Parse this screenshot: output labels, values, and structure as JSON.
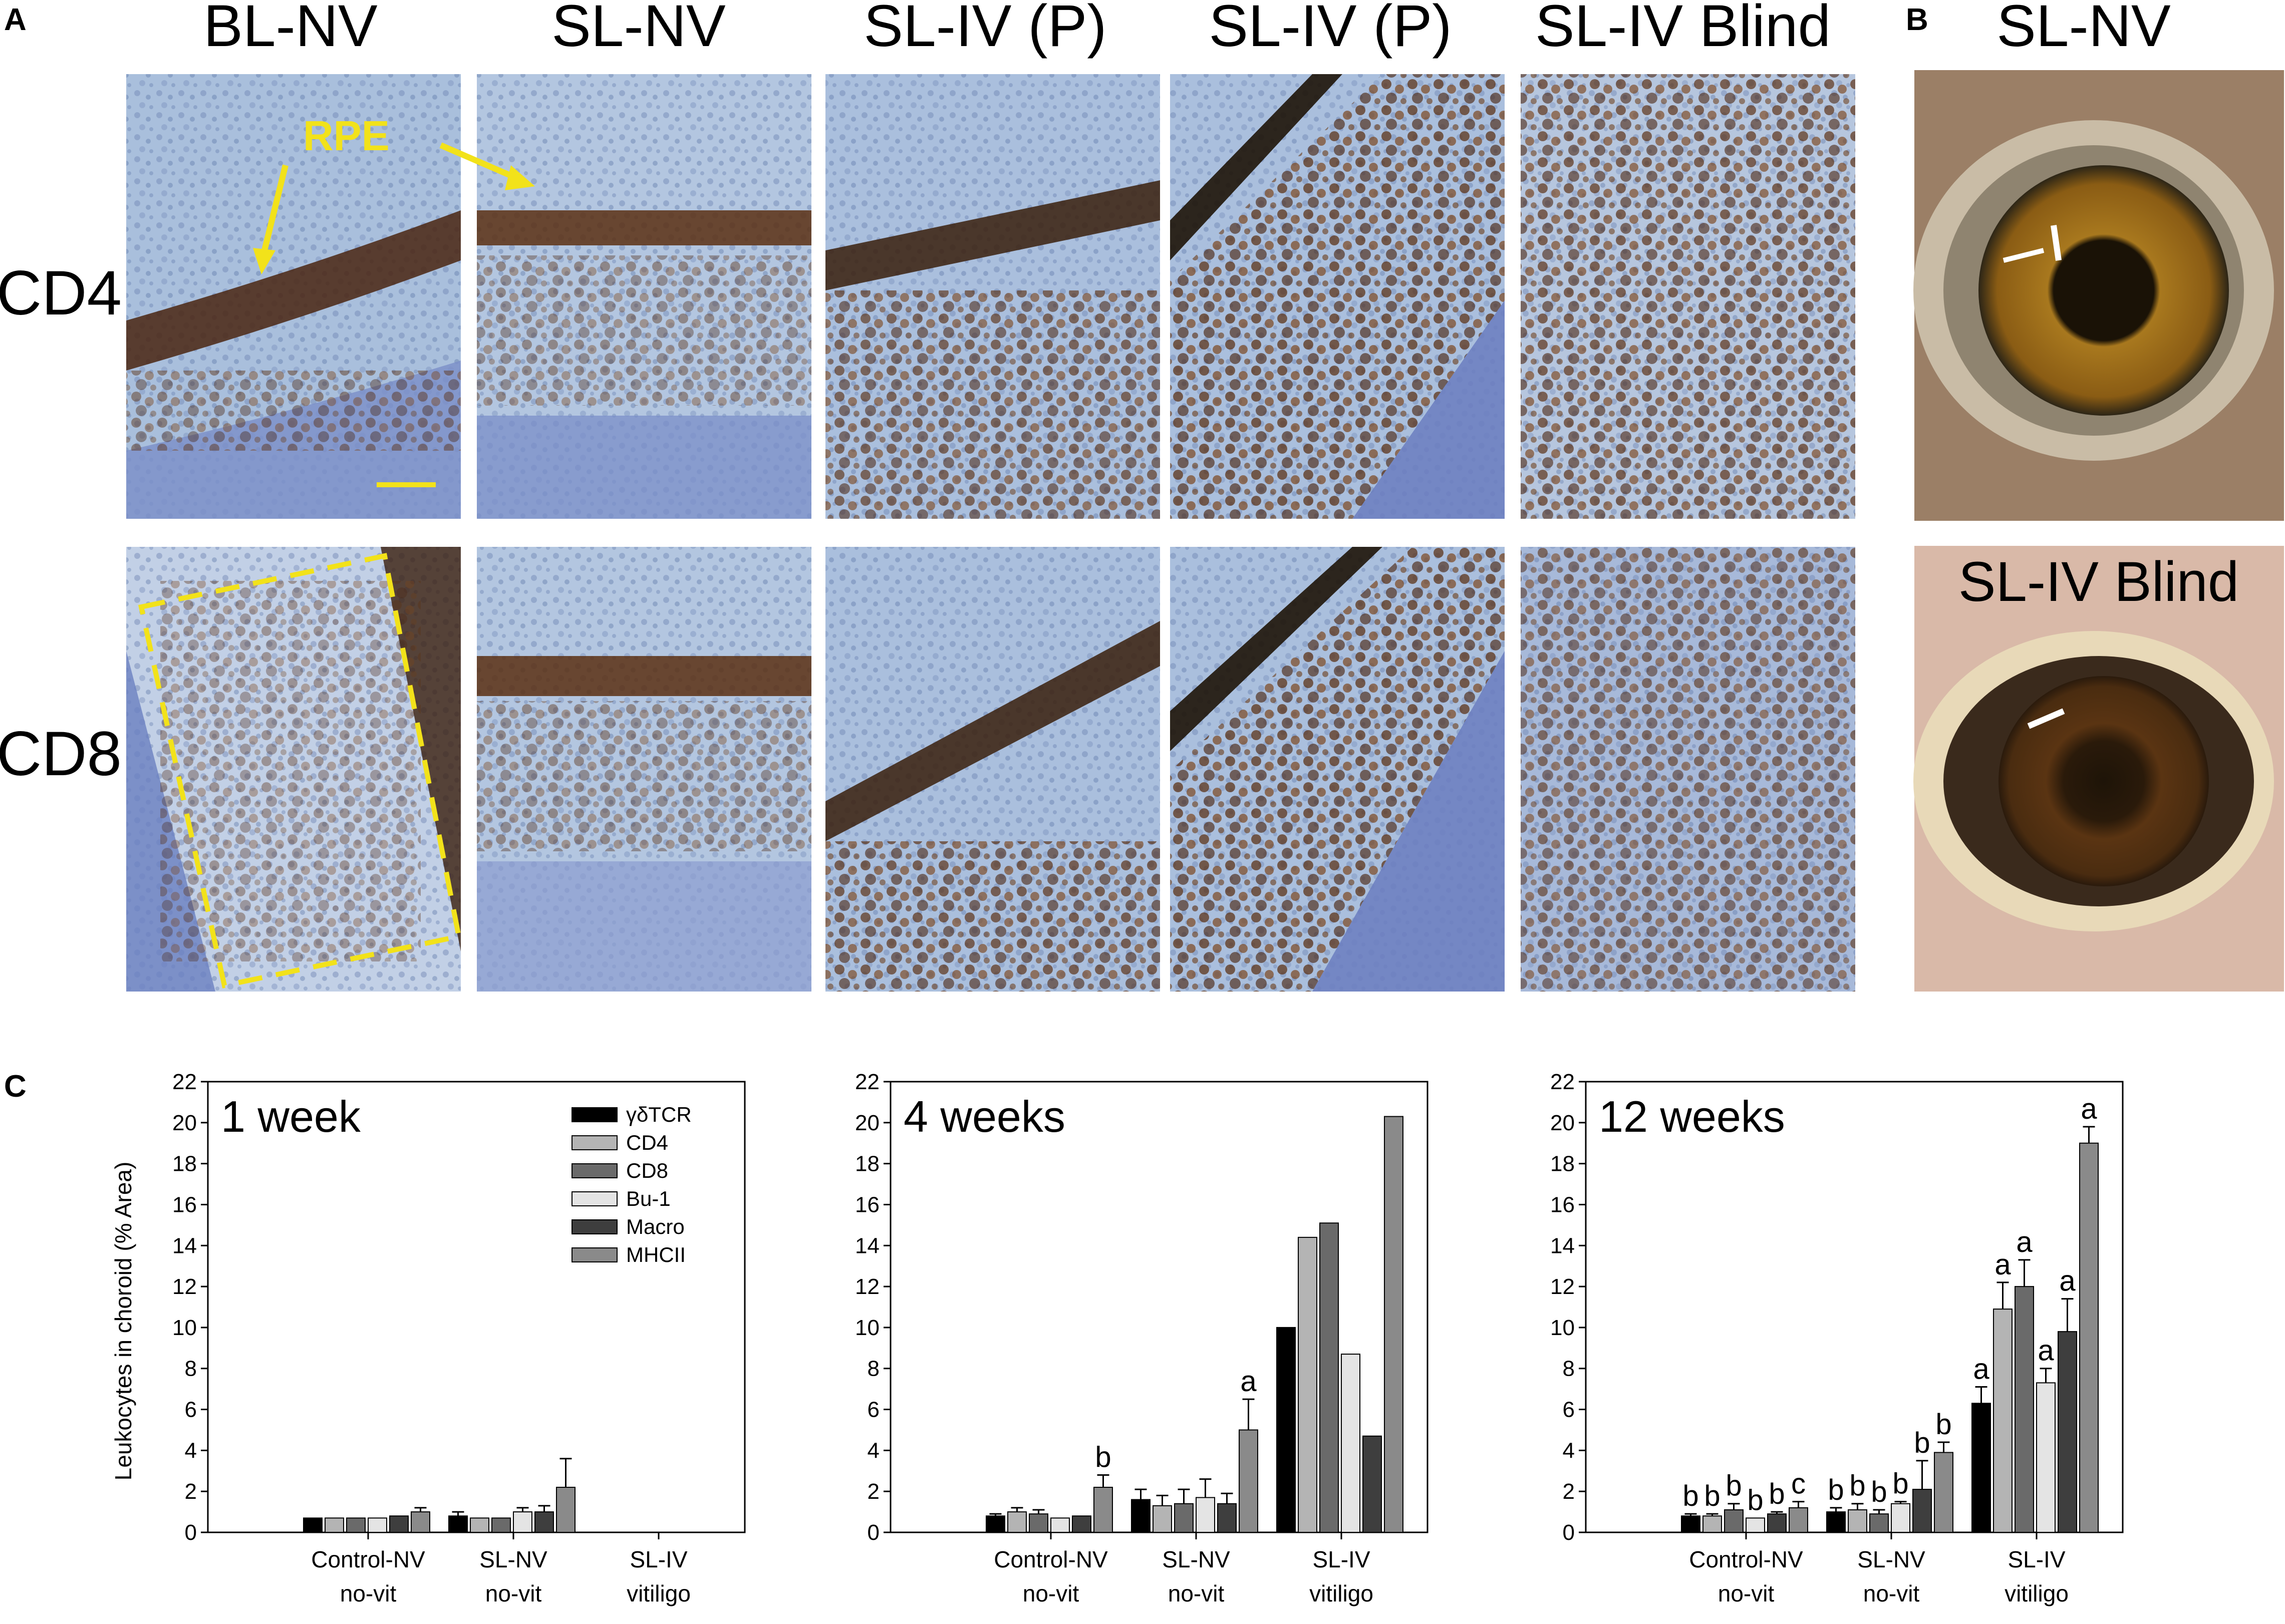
{
  "panel_a": {
    "letter": "A",
    "columns": [
      "BL-NV",
      "SL-NV",
      "SL-IV (P)",
      "SL-IV (P)",
      "SL-IV Blind"
    ],
    "rows": [
      "CD4",
      "CD8"
    ],
    "rpe_label": "RPE",
    "annotation_color": "#f2e21a"
  },
  "panel_b": {
    "letter": "B",
    "eyes": [
      "SL-NV",
      "SL-IV Blind"
    ]
  },
  "panel_c": {
    "letter": "C",
    "ylabel": "Leukocytes in choroid (% Area)"
  },
  "colors": {
    "gdTCR": "#000000",
    "CD4": "#b4b4b4",
    "CD8": "#6a6a6a",
    "Bu1": "#e4e4e4",
    "Macro": "#3e3e3e",
    "MHCII": "#8a8a8a",
    "stain_brown": "#5a2f12",
    "tissue_blue": "#a9bfdc"
  },
  "chart_data": [
    {
      "type": "bar",
      "title": "1 week",
      "categories": [
        "Control-NV no-vit",
        "SL-NV no-vit",
        "SL-IV vitiligo"
      ],
      "category_lines": [
        [
          "Control-NV",
          "no-vit"
        ],
        [
          "SL-NV",
          "no-vit"
        ],
        [
          "SL-IV",
          "vitiligo"
        ]
      ],
      "ylim": [
        0,
        22
      ],
      "yticks": [
        0,
        2,
        4,
        6,
        8,
        10,
        12,
        14,
        16,
        18,
        20,
        22
      ],
      "legend": [
        "γδTCR",
        "CD4",
        "CD8",
        "Bu-1",
        "Macro",
        "MHCII"
      ],
      "legend_position": "top-right",
      "series": [
        {
          "name": "γδTCR",
          "values": [
            0.7,
            0.8,
            null
          ],
          "errors": [
            0,
            0.2,
            null
          ],
          "letters": [
            "",
            "",
            ""
          ]
        },
        {
          "name": "CD4",
          "values": [
            0.7,
            0.7,
            null
          ],
          "errors": [
            0,
            0,
            null
          ],
          "letters": [
            "",
            "",
            ""
          ]
        },
        {
          "name": "CD8",
          "values": [
            0.7,
            0.7,
            null
          ],
          "errors": [
            0,
            0,
            null
          ],
          "letters": [
            "",
            "",
            ""
          ]
        },
        {
          "name": "Bu-1",
          "values": [
            0.7,
            1.0,
            null
          ],
          "errors": [
            0,
            0.2,
            null
          ],
          "letters": [
            "",
            "",
            ""
          ]
        },
        {
          "name": "Macro",
          "values": [
            0.8,
            1.0,
            null
          ],
          "errors": [
            0,
            0.3,
            null
          ],
          "letters": [
            "",
            "",
            ""
          ]
        },
        {
          "name": "MHCII",
          "values": [
            1.0,
            2.2,
            null
          ],
          "errors": [
            0.2,
            1.4,
            null
          ],
          "letters": [
            "",
            "",
            ""
          ]
        }
      ]
    },
    {
      "type": "bar",
      "title": "4 weeks",
      "categories": [
        "Control-NV no-vit",
        "SL-NV no-vit",
        "SL-IV vitiligo"
      ],
      "category_lines": [
        [
          "Control-NV",
          "no-vit"
        ],
        [
          "SL-NV",
          "no-vit"
        ],
        [
          "SL-IV",
          "vitiligo"
        ]
      ],
      "ylim": [
        0,
        22
      ],
      "yticks": [
        0,
        2,
        4,
        6,
        8,
        10,
        12,
        14,
        16,
        18,
        20,
        22
      ],
      "series": [
        {
          "name": "γδTCR",
          "values": [
            0.8,
            1.6,
            10.0
          ],
          "errors": [
            0.1,
            0.5,
            0
          ],
          "letters": [
            "",
            "",
            ""
          ]
        },
        {
          "name": "CD4",
          "values": [
            1.0,
            1.3,
            14.4
          ],
          "errors": [
            0.2,
            0.5,
            0
          ],
          "letters": [
            "",
            "",
            ""
          ]
        },
        {
          "name": "CD8",
          "values": [
            0.9,
            1.4,
            15.1
          ],
          "errors": [
            0.2,
            0.7,
            0
          ],
          "letters": [
            "",
            "",
            ""
          ]
        },
        {
          "name": "Bu-1",
          "values": [
            0.7,
            1.7,
            8.7
          ],
          "errors": [
            0,
            0.9,
            0
          ],
          "letters": [
            "",
            "",
            ""
          ]
        },
        {
          "name": "Macro",
          "values": [
            0.8,
            1.4,
            4.7
          ],
          "errors": [
            0,
            0.5,
            0
          ],
          "letters": [
            "",
            "",
            ""
          ]
        },
        {
          "name": "MHCII",
          "values": [
            2.2,
            5.0,
            20.3
          ],
          "errors": [
            0.6,
            1.5,
            0
          ],
          "letters": [
            "b",
            "a",
            ""
          ]
        }
      ]
    },
    {
      "type": "bar",
      "title": "12 weeks",
      "categories": [
        "Control-NV no-vit",
        "SL-NV no-vit",
        "SL-IV vitiligo"
      ],
      "category_lines": [
        [
          "Control-NV",
          "no-vit"
        ],
        [
          "SL-NV",
          "no-vit"
        ],
        [
          "SL-IV",
          "vitiligo"
        ]
      ],
      "ylim": [
        0,
        22
      ],
      "yticks": [
        0,
        2,
        4,
        6,
        8,
        10,
        12,
        14,
        16,
        18,
        20,
        22
      ],
      "series": [
        {
          "name": "γδTCR",
          "values": [
            0.8,
            1.0,
            6.3
          ],
          "errors": [
            0.1,
            0.2,
            0.8
          ],
          "letters": [
            "b",
            "b",
            "a"
          ]
        },
        {
          "name": "CD4",
          "values": [
            0.8,
            1.1,
            10.9
          ],
          "errors": [
            0.1,
            0.3,
            1.3
          ],
          "letters": [
            "b",
            "b",
            "a"
          ]
        },
        {
          "name": "CD8",
          "values": [
            1.1,
            0.9,
            12.0
          ],
          "errors": [
            0.3,
            0.2,
            1.3
          ],
          "letters": [
            "b",
            "b",
            "a"
          ]
        },
        {
          "name": "Bu-1",
          "values": [
            0.7,
            1.4,
            7.3
          ],
          "errors": [
            0,
            0.1,
            0.7
          ],
          "letters": [
            "b",
            "b",
            "a"
          ]
        },
        {
          "name": "Macro",
          "values": [
            0.9,
            2.1,
            9.8
          ],
          "errors": [
            0.1,
            1.4,
            1.6
          ],
          "letters": [
            "b",
            "b",
            "a"
          ]
        },
        {
          "name": "MHCII",
          "values": [
            1.2,
            3.9,
            19.0
          ],
          "errors": [
            0.3,
            0.5,
            0.8
          ],
          "letters": [
            "c",
            "b",
            "a"
          ]
        }
      ]
    }
  ]
}
